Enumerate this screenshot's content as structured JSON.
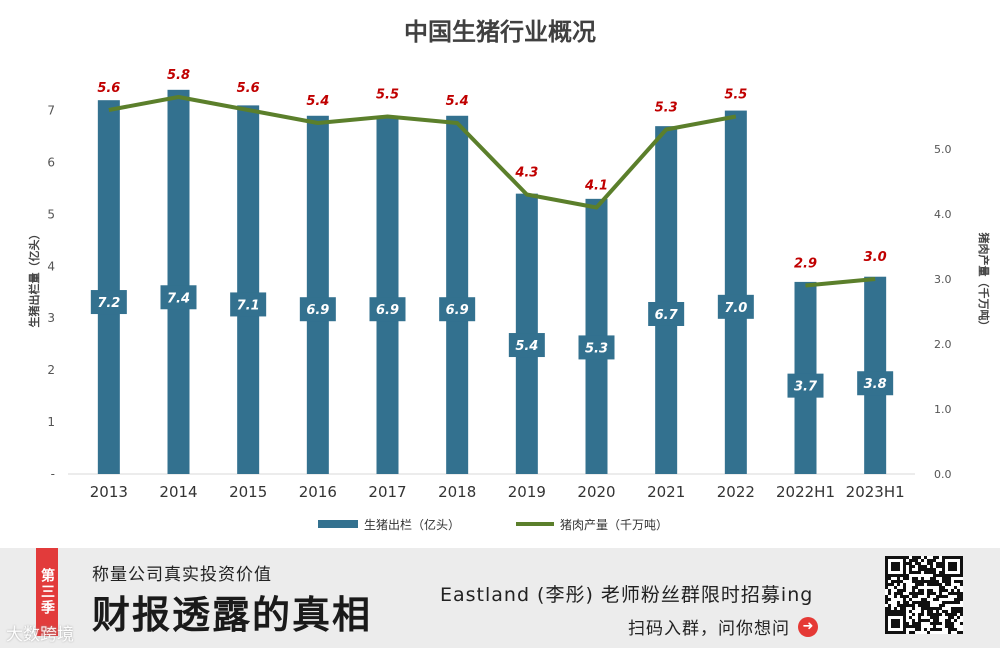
{
  "chart_data": {
    "type": "bar+line",
    "title": "中国生猪行业概况",
    "categories": [
      "2013",
      "2014",
      "2015",
      "2016",
      "2017",
      "2018",
      "2019",
      "2020",
      "2021",
      "2022",
      "2022H1",
      "2023H1"
    ],
    "series": [
      {
        "name": "生猪出栏（亿头）",
        "type": "bar",
        "axis": "left",
        "values": [
          7.2,
          7.4,
          7.1,
          6.9,
          6.9,
          6.9,
          5.4,
          5.3,
          6.7,
          7.0,
          3.7,
          3.8
        ],
        "color": "#33718f"
      },
      {
        "name": "猪肉产量（千万吨）",
        "type": "line",
        "axis": "right",
        "values": [
          5.6,
          5.8,
          5.6,
          5.4,
          5.5,
          5.4,
          4.3,
          4.1,
          5.3,
          5.5,
          2.9,
          3.0
        ],
        "color": "#5b7f2b",
        "label_color": "#c00000"
      }
    ],
    "ylabel_left": "生猪出栏量（亿头）",
    "ylabel_right": "猪肉产量（千万吨）",
    "y_left_ticks": [
      "-",
      "1",
      "2",
      "3",
      "4",
      "5",
      "6",
      "7"
    ],
    "y_left_lim": [
      0,
      7.3
    ],
    "y_right_ticks": [
      "0.0",
      "1.0",
      "2.0",
      "3.0",
      "4.0",
      "5.0"
    ],
    "y_right_lim": [
      0,
      5.6
    ],
    "legend_position": "bottom",
    "grid": false
  },
  "banner": {
    "season_tag": "第三季",
    "slogan": "称量公司真实投资价值",
    "headline": "财报透露的真相",
    "teacher_line": "Eastland (李彤) 老师粉丝群限时招募ing",
    "cta": "扫码入群，问你想问",
    "arrow_icon": "right-arrow-icon",
    "watermark": "大数跨境"
  }
}
